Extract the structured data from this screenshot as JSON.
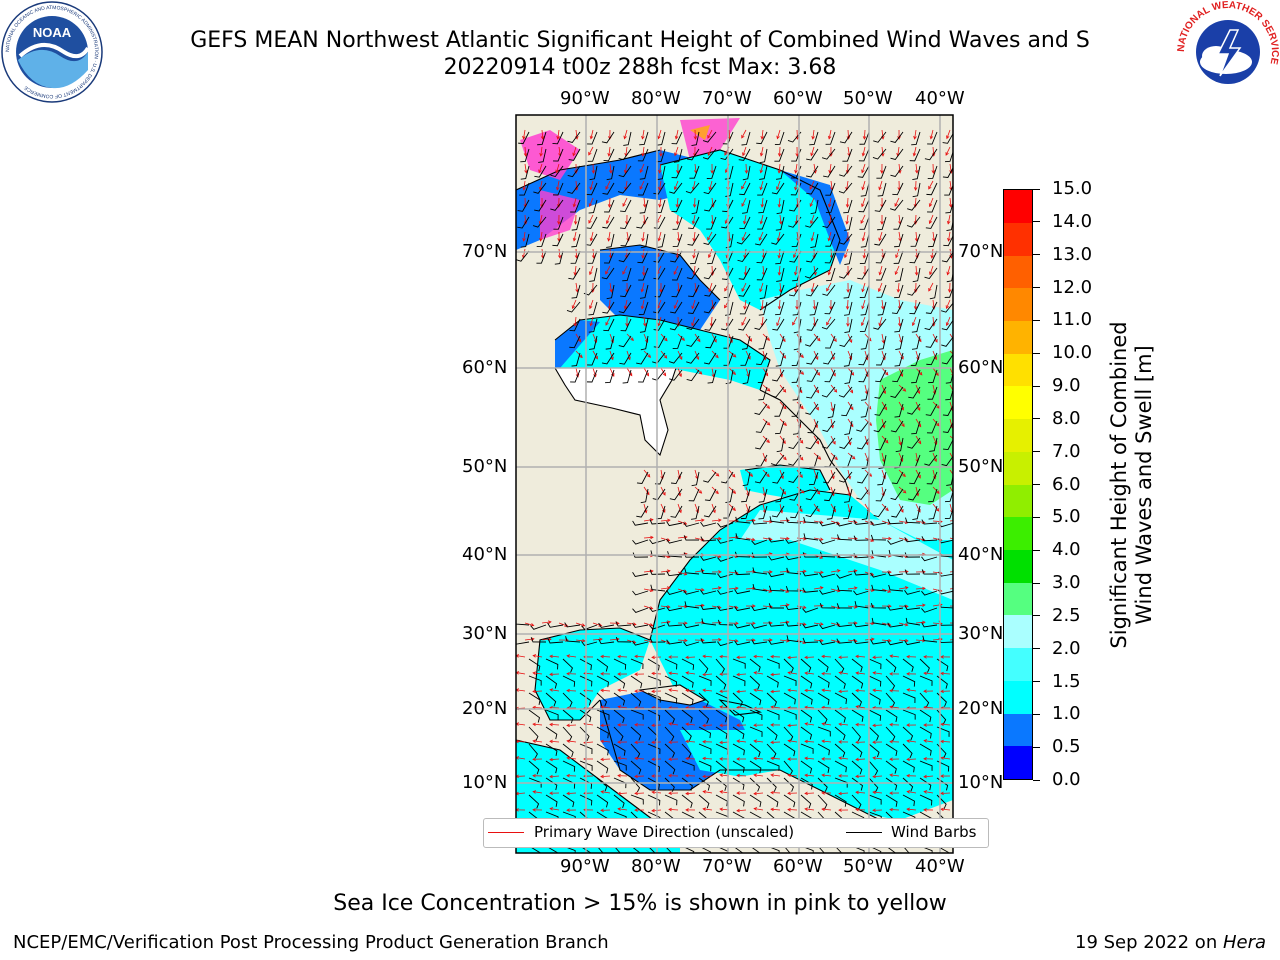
{
  "title": {
    "line1": "GEFS MEAN Northwest Atlantic Significant Height of Combined Wind Waves and S",
    "line2": "20220914 t00z 288h fcst   Max: 3.68"
  },
  "logos": {
    "left_text": "NOAA",
    "left_ring": "NATIONAL OCEANIC AND ATMOSPHERIC ADMINISTRATION · U.S. DEPARTMENT OF COMMERCE",
    "right_ring": "NATIONAL WEATHER SERVICE"
  },
  "map": {
    "lon_labels": [
      "90°W",
      "80°W",
      "70°W",
      "60°W",
      "50°W",
      "40°W"
    ],
    "lat_labels": [
      "70°N",
      "60°N",
      "50°N",
      "40°N",
      "30°N",
      "20°N",
      "10°N"
    ],
    "colors": {
      "land": "#efecdc",
      "grid": "#b0b0b0",
      "coast": "#000000",
      "arrow": "#e81010",
      "barb": "#000000"
    }
  },
  "colorbar": {
    "ticks": [
      "0.0",
      "0.5",
      "1.0",
      "1.5",
      "2.0",
      "2.5",
      "3.0",
      "4.0",
      "5.0",
      "6.0",
      "7.0",
      "8.0",
      "9.0",
      "10.0",
      "11.0",
      "12.0",
      "13.0",
      "14.0",
      "15.0"
    ],
    "colors": [
      "#0000ff",
      "#0a78ff",
      "#00ffff",
      "#44ffff",
      "#aaffff",
      "#55ff80",
      "#00e000",
      "#3cee00",
      "#90ee00",
      "#c8f000",
      "#e6f000",
      "#ffff00",
      "#ffe000",
      "#ffb300",
      "#ff8800",
      "#ff6000",
      "#ff3000",
      "#ff0000"
    ],
    "label_line1": "Significant Height of Combined",
    "label_line2": "Wind Waves and Swell [m]"
  },
  "legend": {
    "wave_label": "Primary Wave Direction (unscaled)",
    "barb_label": "Wind Barbs"
  },
  "notes": {
    "sea_ice": "Sea Ice Concentration > 15% is shown in pink to yellow",
    "credit": "NCEP/EMC/Verification Post Processing Product Generation Branch",
    "date": "19 Sep 2022 on ",
    "machine": "Hera"
  }
}
